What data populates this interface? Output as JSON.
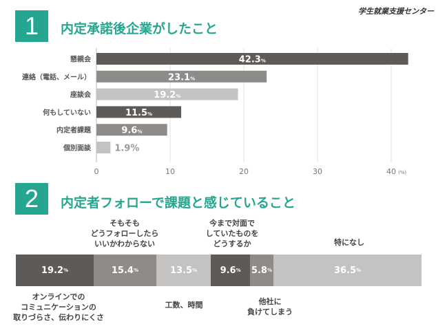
{
  "brand": "学生就業支援センター",
  "section1": {
    "number": "1",
    "title": "内定承諾後企業がしたこと"
  },
  "section2": {
    "number": "2",
    "title": "内定者フォローで課題と感じていること"
  },
  "chart_data": [
    {
      "type": "bar",
      "orientation": "horizontal",
      "title": "内定承諾後企業がしたこと",
      "categories": [
        "懇親会",
        "連絡（電話、メール）",
        "座談会",
        "何もしていない",
        "内定者課題",
        "個別面談"
      ],
      "values": [
        42.3,
        23.1,
        19.2,
        11.5,
        9.6,
        1.9
      ],
      "value_labels": [
        "42.3",
        "23.1",
        "19.2",
        "11.5",
        "9.6",
        "1.9%"
      ],
      "value_unit": "%",
      "colors": [
        "#5e5a57",
        "#8f8b88",
        "#c5c3c1",
        "#5e5a57",
        "#8f8b88",
        "#c5c3c1"
      ],
      "xlim": [
        0,
        45
      ],
      "xticks": [
        0,
        10,
        20,
        30,
        40
      ],
      "xtick_labels": [
        "0",
        "10",
        "20",
        "30",
        "40"
      ],
      "xunit": "(%)"
    },
    {
      "type": "bar",
      "orientation": "stacked-100",
      "title": "内定者フォローで課題と感じていること",
      "categories": [
        "オンラインでの\nコミュニケーションの\n取りづらさ、伝わりにくさ",
        "そもそも\nどうフォローしたら\nいいかわからない",
        "工数、時間",
        "今まで対面で\nしていたものを\nどうするか",
        "他社に\n負けてしまう",
        "特になし"
      ],
      "values": [
        19.2,
        15.4,
        13.5,
        9.6,
        5.8,
        36.5
      ],
      "value_labels": [
        "19.2",
        "15.4",
        "13.5",
        "9.6",
        "5.8",
        "36.5"
      ],
      "value_unit": "%",
      "colors": [
        "#5e5a57",
        "#8f8b88",
        "#c5c3c1",
        "#5e5a57",
        "#8f8b88",
        "#c5c3c1"
      ]
    }
  ]
}
